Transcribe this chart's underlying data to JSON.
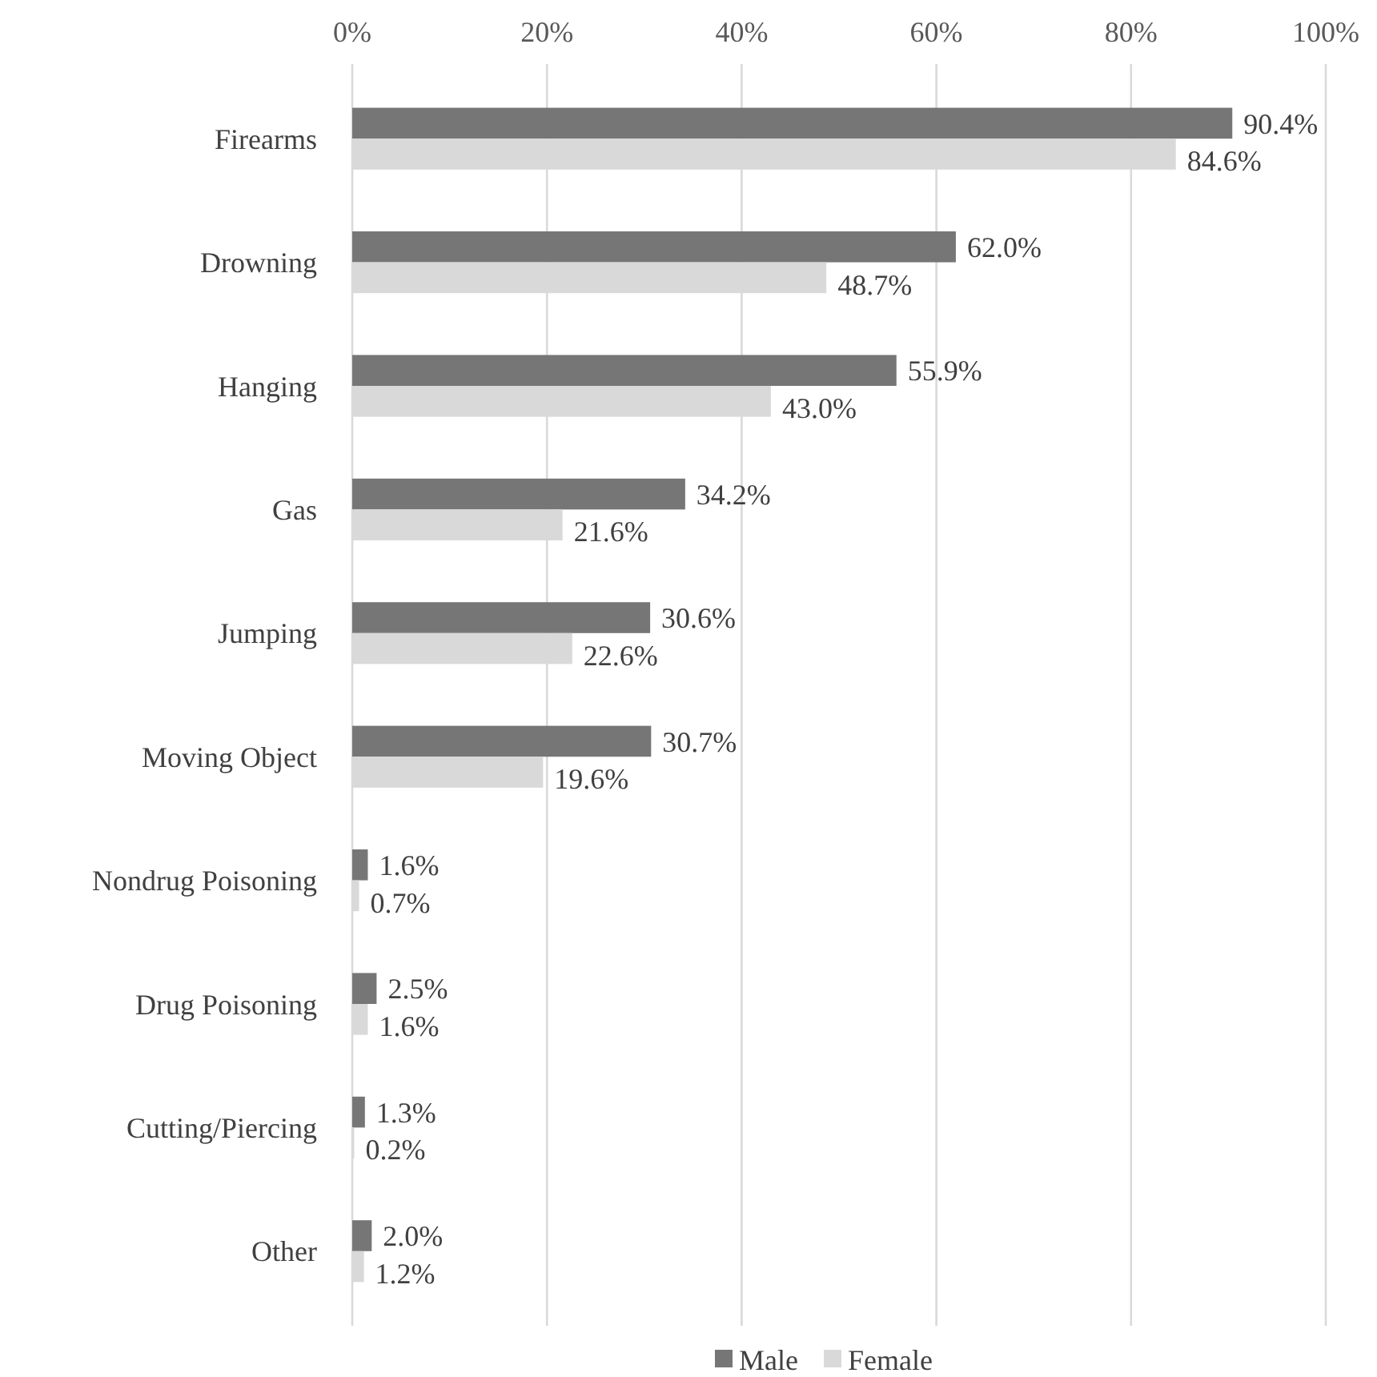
{
  "chart_data": {
    "type": "bar",
    "orientation": "horizontal",
    "categories": [
      "Firearms",
      "Drowning",
      "Hanging",
      "Gas",
      "Jumping",
      "Moving Object",
      "Nondrug Poisoning",
      "Drug Poisoning",
      "Cutting/Piercing",
      "Other"
    ],
    "series": [
      {
        "name": "Male",
        "color": "#767676",
        "values": [
          90.4,
          62.0,
          55.9,
          34.2,
          30.6,
          30.7,
          1.6,
          2.5,
          1.3,
          2.0
        ],
        "value_labels": [
          "90.4%",
          "62.0%",
          "55.9%",
          "34.2%",
          "30.6%",
          "30.7%",
          "1.6%",
          "2.5%",
          "1.3%",
          "2.0%"
        ]
      },
      {
        "name": "Female",
        "color": "#d9d9d9",
        "values": [
          84.6,
          48.7,
          43.0,
          21.6,
          22.6,
          19.6,
          0.7,
          1.6,
          0.2,
          1.2
        ],
        "value_labels": [
          "84.6%",
          "48.7%",
          "43.0%",
          "21.6%",
          "22.6%",
          "19.6%",
          "0.7%",
          "1.6%",
          "0.2%",
          "1.2%"
        ]
      }
    ],
    "xlim": [
      0,
      100
    ],
    "xticks": [
      {
        "value": 0,
        "label": "0%"
      },
      {
        "value": 20,
        "label": "20%"
      },
      {
        "value": 40,
        "label": "40%"
      },
      {
        "value": 60,
        "label": "60%"
      },
      {
        "value": 80,
        "label": "80%"
      },
      {
        "value": 100,
        "label": "100%"
      }
    ],
    "grid": "x",
    "legend": "bottom"
  }
}
